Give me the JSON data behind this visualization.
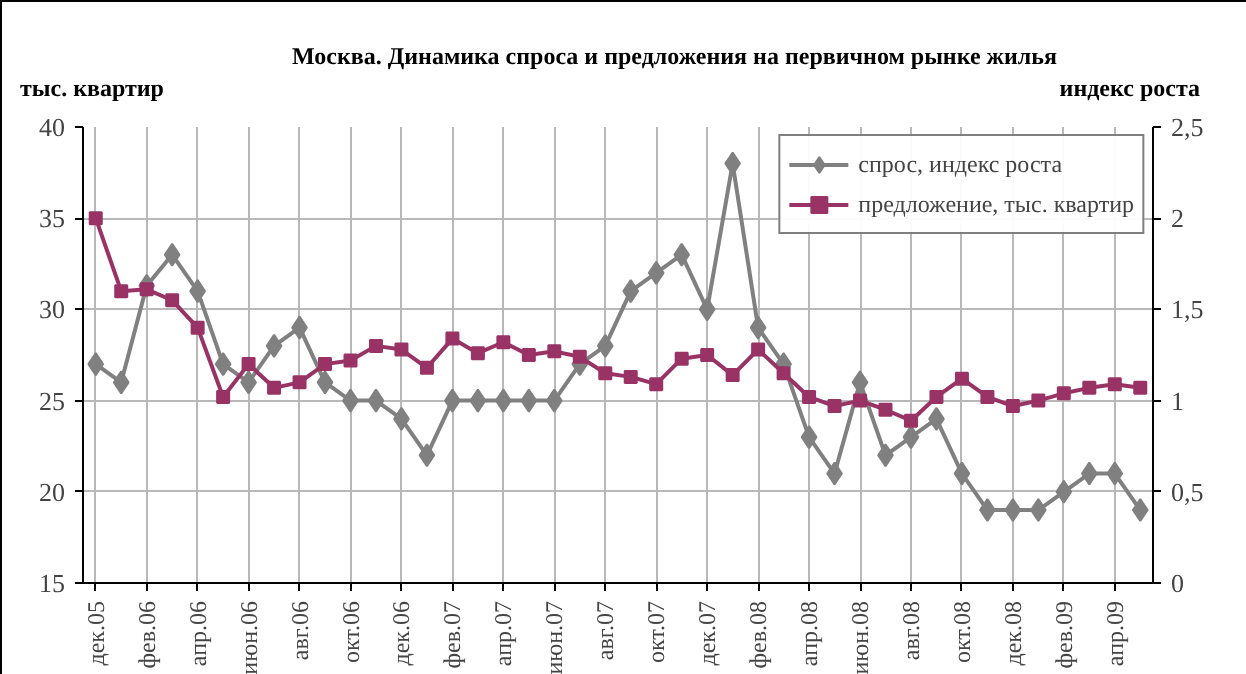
{
  "chart_data": {
    "type": "line",
    "title": "Москва. Динамика спроса и предложения на первичном рынке жилья",
    "ylabel": "тыс. квартир",
    "y2label": "индекс роста",
    "categories": [
      "дек.05",
      null,
      "фев.06",
      null,
      "апр.06",
      null,
      "июн.06",
      null,
      "авг.06",
      null,
      "окт.06",
      null,
      "дек.06",
      null,
      "фев.07",
      null,
      "апр.07",
      null,
      "июн.07",
      null,
      "авг.07",
      null,
      "окт.07",
      null,
      "дек.07",
      null,
      "фев.08",
      null,
      "апр.08",
      null,
      "июн.08",
      null,
      "авг.08",
      null,
      "окт.08",
      null,
      "дек.08",
      null,
      "фев.09",
      null,
      "апр.09",
      null
    ],
    "series": [
      {
        "name": "спрос, индекс роста",
        "color": "#808080",
        "axis": "y2",
        "marker": "diamond",
        "values": [
          1.2,
          1.1,
          1.63,
          1.8,
          1.6,
          1.2,
          1.1,
          1.3,
          1.4,
          1.1,
          1.0,
          1.0,
          0.9,
          0.7,
          1.0,
          1.0,
          1.0,
          1.0,
          1.0,
          1.2,
          1.3,
          1.6,
          1.7,
          1.8,
          1.5,
          2.3,
          1.4,
          1.2,
          0.8,
          0.6,
          1.1,
          0.7,
          0.8,
          0.9,
          0.6,
          0.4,
          0.4,
          0.4,
          0.5,
          0.6,
          0.6,
          0.4
        ]
      },
      {
        "name": "предложение, тыс. квартир",
        "color": "#993366",
        "marker": "square",
        "values": [
          35,
          31,
          31.1,
          30.5,
          29,
          25.2,
          27,
          25.7,
          26,
          27,
          27.2,
          28,
          27.8,
          26.8,
          28.4,
          27.6,
          28.2,
          27.5,
          27.7,
          27.4,
          26.5,
          26.3,
          25.9,
          27.3,
          27.5,
          26.4,
          27.8,
          26.5,
          25.2,
          24.7,
          25,
          24.5,
          23.9,
          25.2,
          26.2,
          25.2,
          24.7,
          25,
          25.4,
          25.7,
          25.9,
          25.7
        ]
      }
    ],
    "ylim": [
      15,
      40
    ],
    "yticks": [
      15,
      20,
      25,
      30,
      35,
      40
    ],
    "y2lim": [
      0,
      2.5
    ],
    "y2ticks": [
      0,
      {
        "value": 0.5,
        "label": "0,5"
      },
      1,
      {
        "value": 1.5,
        "label": "1,5"
      },
      2,
      {
        "value": 2.5,
        "label": "2,5"
      }
    ],
    "grid": true,
    "legend": "top right",
    "line_style": "solid"
  }
}
